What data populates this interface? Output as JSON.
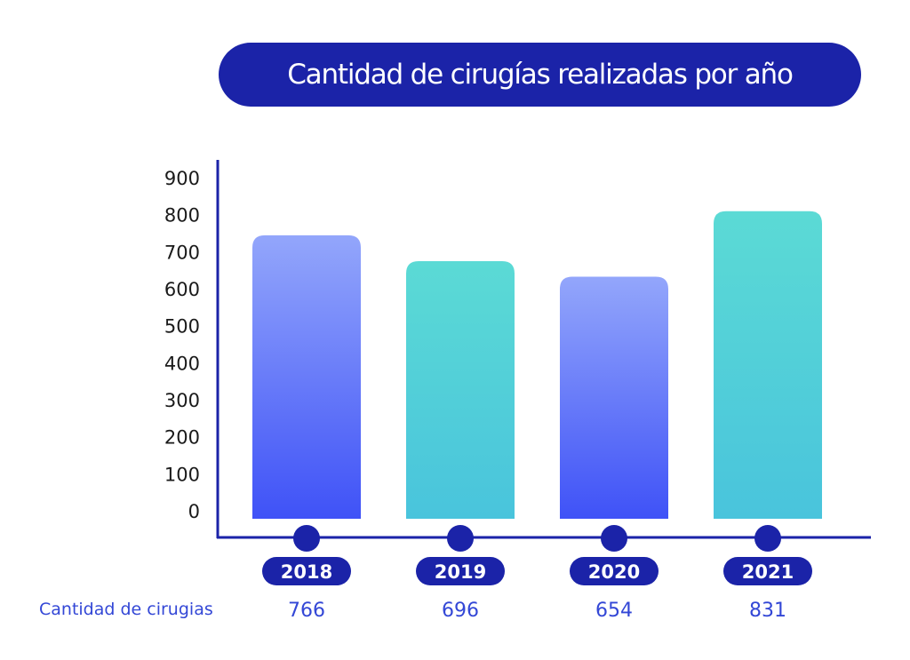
{
  "chart_data": {
    "type": "bar",
    "title": "Cantidad de cirugías realizadas por año",
    "xlabel": "",
    "ylabel": "",
    "categories": [
      "2018",
      "2019",
      "2020",
      "2021"
    ],
    "series": [
      {
        "name": "Cantidad de cirugias",
        "values": [
          766,
          696,
          654,
          831
        ]
      }
    ],
    "ylim": [
      0,
      900
    ],
    "yticks": [
      0,
      100,
      200,
      300,
      400,
      500,
      600,
      700,
      800,
      900
    ],
    "grid": false,
    "legend": "none",
    "row_label": "Cantidad de cirugias",
    "data_labels": [
      "766",
      "696",
      "654",
      "831"
    ],
    "bar_colors": [
      {
        "top": "#93a6fb",
        "bottom": "#3f52f7"
      },
      {
        "top": "#5bdad5",
        "bottom": "#49c4dc"
      },
      {
        "top": "#93a6fb",
        "bottom": "#3f52f7"
      },
      {
        "top": "#5bdad5",
        "bottom": "#49c4dc"
      }
    ]
  },
  "colors": {
    "accent": "#1b23a8",
    "axis": "#1b23a8",
    "value_text": "#3347d6"
  }
}
